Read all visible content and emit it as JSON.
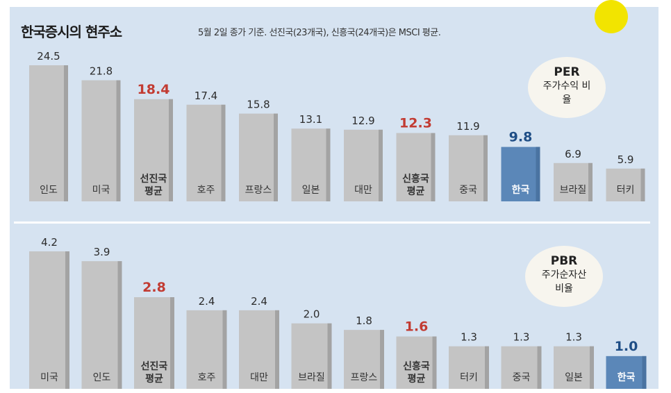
{
  "header": {
    "title": "한국증시의 현주소",
    "subtitle": "5월 2일 종가 기준. 선진국(23개국), 신흥국(24개국)은 MSCI 평균."
  },
  "bubbles": {
    "per": {
      "title": "PER",
      "sub": "주가수익 비율"
    },
    "pbr": {
      "title": "PBR",
      "sub": "주가순자산 비율"
    }
  },
  "colors": {
    "bar": "#c4c4c4",
    "bar_shade": "#a3a3a3",
    "korea_bar": "#5b87b8",
    "korea_label": "#1f4e86",
    "average_label": "#c23b32",
    "text": "#2b2b2b"
  },
  "chart_data": [
    {
      "type": "bar",
      "title": "PER",
      "categories": [
        "인도",
        "미국",
        "선진국 평균",
        "호주",
        "프랑스",
        "일본",
        "대만",
        "신흥국 평균",
        "중국",
        "한국",
        "브라질",
        "터키"
      ],
      "values": [
        24.5,
        21.8,
        18.4,
        17.4,
        15.8,
        13.1,
        12.9,
        12.3,
        11.9,
        9.8,
        6.9,
        5.9
      ],
      "value_labels": [
        "24.5",
        "21.8",
        "18.4",
        "17.4",
        "15.8",
        "13.1",
        "12.9",
        "12.3",
        "11.9",
        "9.8",
        "6.9",
        "5.9"
      ],
      "highlight": [
        "normal",
        "normal",
        "average",
        "normal",
        "normal",
        "normal",
        "normal",
        "average",
        "normal",
        "korea",
        "normal",
        "normal"
      ]
    },
    {
      "type": "bar",
      "title": "PBR",
      "categories": [
        "미국",
        "인도",
        "선진국 평균",
        "호주",
        "대만",
        "브라질",
        "프랑스",
        "신흥국 평균",
        "터키",
        "중국",
        "일본",
        "한국"
      ],
      "values": [
        4.2,
        3.9,
        2.8,
        2.4,
        2.4,
        2.0,
        1.8,
        1.6,
        1.3,
        1.3,
        1.3,
        1.0
      ],
      "value_labels": [
        "4.2",
        "3.9",
        "2.8",
        "2.4",
        "2.4",
        "2.0",
        "1.8",
        "1.6",
        "1.3",
        "1.3",
        "1.3",
        "1.0"
      ],
      "highlight": [
        "normal",
        "normal",
        "average",
        "normal",
        "normal",
        "normal",
        "normal",
        "average",
        "normal",
        "normal",
        "normal",
        "korea"
      ]
    }
  ]
}
